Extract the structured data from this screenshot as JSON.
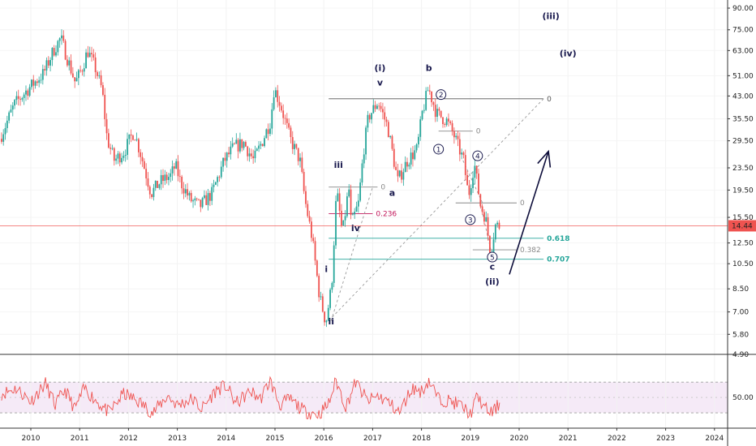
{
  "chart_data": {
    "type": "candlestick",
    "scale": "log",
    "price_axis": {
      "ticks": [
        "90.00",
        "75.00",
        "63.00",
        "51.00",
        "43.00",
        "35.50",
        "29.50",
        "23.50",
        "19.50",
        "15.50",
        "12.50",
        "10.50",
        "8.50",
        "7.00",
        "5.80",
        "4.90"
      ],
      "current_price_label": "14.44",
      "current_price": 14.44
    },
    "time_axis": {
      "ticks": [
        "2010",
        "2011",
        "2012",
        "2013",
        "2014",
        "2015",
        "2016",
        "2017",
        "2018",
        "2019",
        "2020",
        "2021",
        "2022",
        "2023",
        "2024"
      ]
    },
    "price_path": [
      [
        2009.4,
        30.0
      ],
      [
        2009.7,
        40.0
      ],
      [
        2010.0,
        46.0
      ],
      [
        2010.3,
        52.0
      ],
      [
        2010.5,
        63.0
      ],
      [
        2010.65,
        70.0
      ],
      [
        2010.8,
        58.0
      ],
      [
        2010.95,
        48.0
      ],
      [
        2011.1,
        55.0
      ],
      [
        2011.2,
        63.0
      ],
      [
        2011.35,
        55.0
      ],
      [
        2011.5,
        45.0
      ],
      [
        2011.6,
        30.0
      ],
      [
        2011.75,
        25.0
      ],
      [
        2011.95,
        27.0
      ],
      [
        2012.15,
        32.0
      ],
      [
        2012.3,
        26.0
      ],
      [
        2012.5,
        19.0
      ],
      [
        2012.7,
        21.0
      ],
      [
        2012.9,
        22.0
      ],
      [
        2013.0,
        24.0
      ],
      [
        2013.1,
        21.0
      ],
      [
        2013.3,
        18.0
      ],
      [
        2013.5,
        17.0
      ],
      [
        2013.75,
        19.0
      ],
      [
        2014.0,
        25.0
      ],
      [
        2014.2,
        28.0
      ],
      [
        2014.4,
        29.0
      ],
      [
        2014.6,
        25.0
      ],
      [
        2014.8,
        30.0
      ],
      [
        2014.95,
        35.0
      ],
      [
        2015.02,
        46.0
      ],
      [
        2015.15,
        40.0
      ],
      [
        2015.35,
        30.0
      ],
      [
        2015.55,
        25.0
      ],
      [
        2015.65,
        18.0
      ],
      [
        2015.8,
        13.0
      ],
      [
        2015.95,
        8.0
      ],
      [
        2016.08,
        6.4
      ],
      [
        2016.2,
        8.8
      ],
      [
        2016.3,
        19.5
      ],
      [
        2016.42,
        13.5
      ],
      [
        2016.55,
        20.0
      ],
      [
        2016.6,
        14.5
      ],
      [
        2016.75,
        17.5
      ],
      [
        2016.85,
        27.0
      ],
      [
        2016.95,
        36.0
      ],
      [
        2017.15,
        41.0
      ],
      [
        2017.35,
        33.0
      ],
      [
        2017.55,
        21.0
      ],
      [
        2017.75,
        25.0
      ],
      [
        2017.95,
        27.5
      ],
      [
        2018.05,
        37.0
      ],
      [
        2018.18,
        46.0
      ],
      [
        2018.35,
        37.0
      ],
      [
        2018.55,
        35.0
      ],
      [
        2018.7,
        31.0
      ],
      [
        2018.9,
        25.0
      ],
      [
        2019.0,
        18.5
      ],
      [
        2019.12,
        24.5
      ],
      [
        2019.25,
        17.0
      ],
      [
        2019.35,
        15.5
      ],
      [
        2019.45,
        11.5
      ],
      [
        2019.55,
        14.5
      ],
      [
        2019.62,
        14.44
      ]
    ],
    "fib_levels": [
      {
        "label": "0",
        "value": 42.0,
        "x_start": 2016.1,
        "x_end": 2020.5,
        "color": "#555555"
      },
      {
        "label": "0",
        "value": 32.0,
        "x_start": 2018.35,
        "x_end": 2019.05,
        "color": "#888888"
      },
      {
        "label": "0",
        "value": 20.0,
        "x_start": 2016.1,
        "x_end": 2017.1,
        "color": "#888888"
      },
      {
        "label": "0",
        "value": 17.5,
        "x_start": 2018.7,
        "x_end": 2019.95,
        "color": "#888888"
      },
      {
        "label": "0.236",
        "value": 16.0,
        "x_start": 2016.1,
        "x_end": 2017.0,
        "color": "#c2185b"
      },
      {
        "label": "0.618",
        "value": 13.0,
        "x_start": 2016.1,
        "x_end": 2020.5,
        "color": "#26a69a"
      },
      {
        "label": "0.382",
        "value": 11.8,
        "x_start": 2019.05,
        "x_end": 2019.95,
        "color": "#888888"
      },
      {
        "label": "0.707",
        "value": 10.9,
        "x_start": 2016.1,
        "x_end": 2020.5,
        "color": "#26a69a"
      }
    ],
    "fib_diagonals": [
      [
        [
          2016.1,
          6.5
        ],
        [
          2020.5,
          42.0
        ]
      ],
      [
        [
          2016.15,
          6.5
        ],
        [
          2017.0,
          20.0
        ]
      ],
      [
        [
          2018.85,
          25.0
        ],
        [
          2019.25,
          17.5
        ]
      ],
      [
        [
          2019.42,
          11.8
        ],
        [
          2019.2,
          17.5
        ]
      ]
    ],
    "wave_labels": [
      {
        "text": "(iii)",
        "x": 2020.65,
        "y": 82.0
      },
      {
        "text": "(iv)",
        "x": 2021.0,
        "y": 60.0
      },
      {
        "text": "(i)",
        "x": 2017.15,
        "y": 53.0
      },
      {
        "text": "v",
        "x": 2017.15,
        "y": 47.0
      },
      {
        "text": "b",
        "x": 2018.15,
        "y": 53.0
      },
      {
        "text": "iii",
        "x": 2016.3,
        "y": 23.5
      },
      {
        "text": "a",
        "x": 2017.4,
        "y": 18.6
      },
      {
        "text": "iv",
        "x": 2016.65,
        "y": 13.8
      },
      {
        "text": "i",
        "x": 2016.05,
        "y": 9.8
      },
      {
        "text": "ii",
        "x": 2016.15,
        "y": 6.3
      },
      {
        "text": "c",
        "x": 2019.45,
        "y": 10.0
      },
      {
        "text": "(ii)",
        "x": 2019.45,
        "y": 8.8
      }
    ],
    "circled_labels": [
      {
        "text": "2",
        "x": 2018.4,
        "y": 43.5
      },
      {
        "text": "1",
        "x": 2018.35,
        "y": 27.5
      },
      {
        "text": "4",
        "x": 2019.15,
        "y": 26.0
      },
      {
        "text": "3",
        "x": 2019.0,
        "y": 15.2
      },
      {
        "text": "5",
        "x": 2019.45,
        "y": 11.1
      }
    ],
    "forecast_arrow": {
      "from": [
        2019.8,
        9.6
      ],
      "to": [
        2020.6,
        27.0
      ]
    },
    "rsi": {
      "tick_label": "50.00",
      "tick_value": 50,
      "band": [
        30,
        70
      ],
      "path": [
        [
          2009.4,
          55
        ],
        [
          2009.7,
          62
        ],
        [
          2010.0,
          45
        ],
        [
          2010.3,
          68
        ],
        [
          2010.5,
          40
        ],
        [
          2010.7,
          60
        ],
        [
          2010.9,
          35
        ],
        [
          2011.1,
          62
        ],
        [
          2011.3,
          48
        ],
        [
          2011.6,
          30
        ],
        [
          2011.9,
          55
        ],
        [
          2012.2,
          45
        ],
        [
          2012.5,
          30
        ],
        [
          2012.8,
          52
        ],
        [
          2013.0,
          40
        ],
        [
          2013.3,
          48
        ],
        [
          2013.5,
          35
        ],
        [
          2013.8,
          60
        ],
        [
          2014.0,
          65
        ],
        [
          2014.2,
          42
        ],
        [
          2014.5,
          58
        ],
        [
          2014.7,
          48
        ],
        [
          2014.9,
          72
        ],
        [
          2015.1,
          40
        ],
        [
          2015.3,
          48
        ],
        [
          2015.6,
          32
        ],
        [
          2015.9,
          28
        ],
        [
          2016.1,
          42
        ],
        [
          2016.25,
          72
        ],
        [
          2016.45,
          38
        ],
        [
          2016.65,
          70
        ],
        [
          2016.9,
          45
        ],
        [
          2017.1,
          52
        ],
        [
          2017.3,
          45
        ],
        [
          2017.55,
          30
        ],
        [
          2017.8,
          62
        ],
        [
          2018.0,
          58
        ],
        [
          2018.15,
          72
        ],
        [
          2018.35,
          48
        ],
        [
          2018.6,
          45
        ],
        [
          2018.8,
          40
        ],
        [
          2019.0,
          28
        ],
        [
          2019.15,
          52
        ],
        [
          2019.3,
          35
        ],
        [
          2019.45,
          30
        ],
        [
          2019.62,
          44
        ]
      ]
    }
  }
}
